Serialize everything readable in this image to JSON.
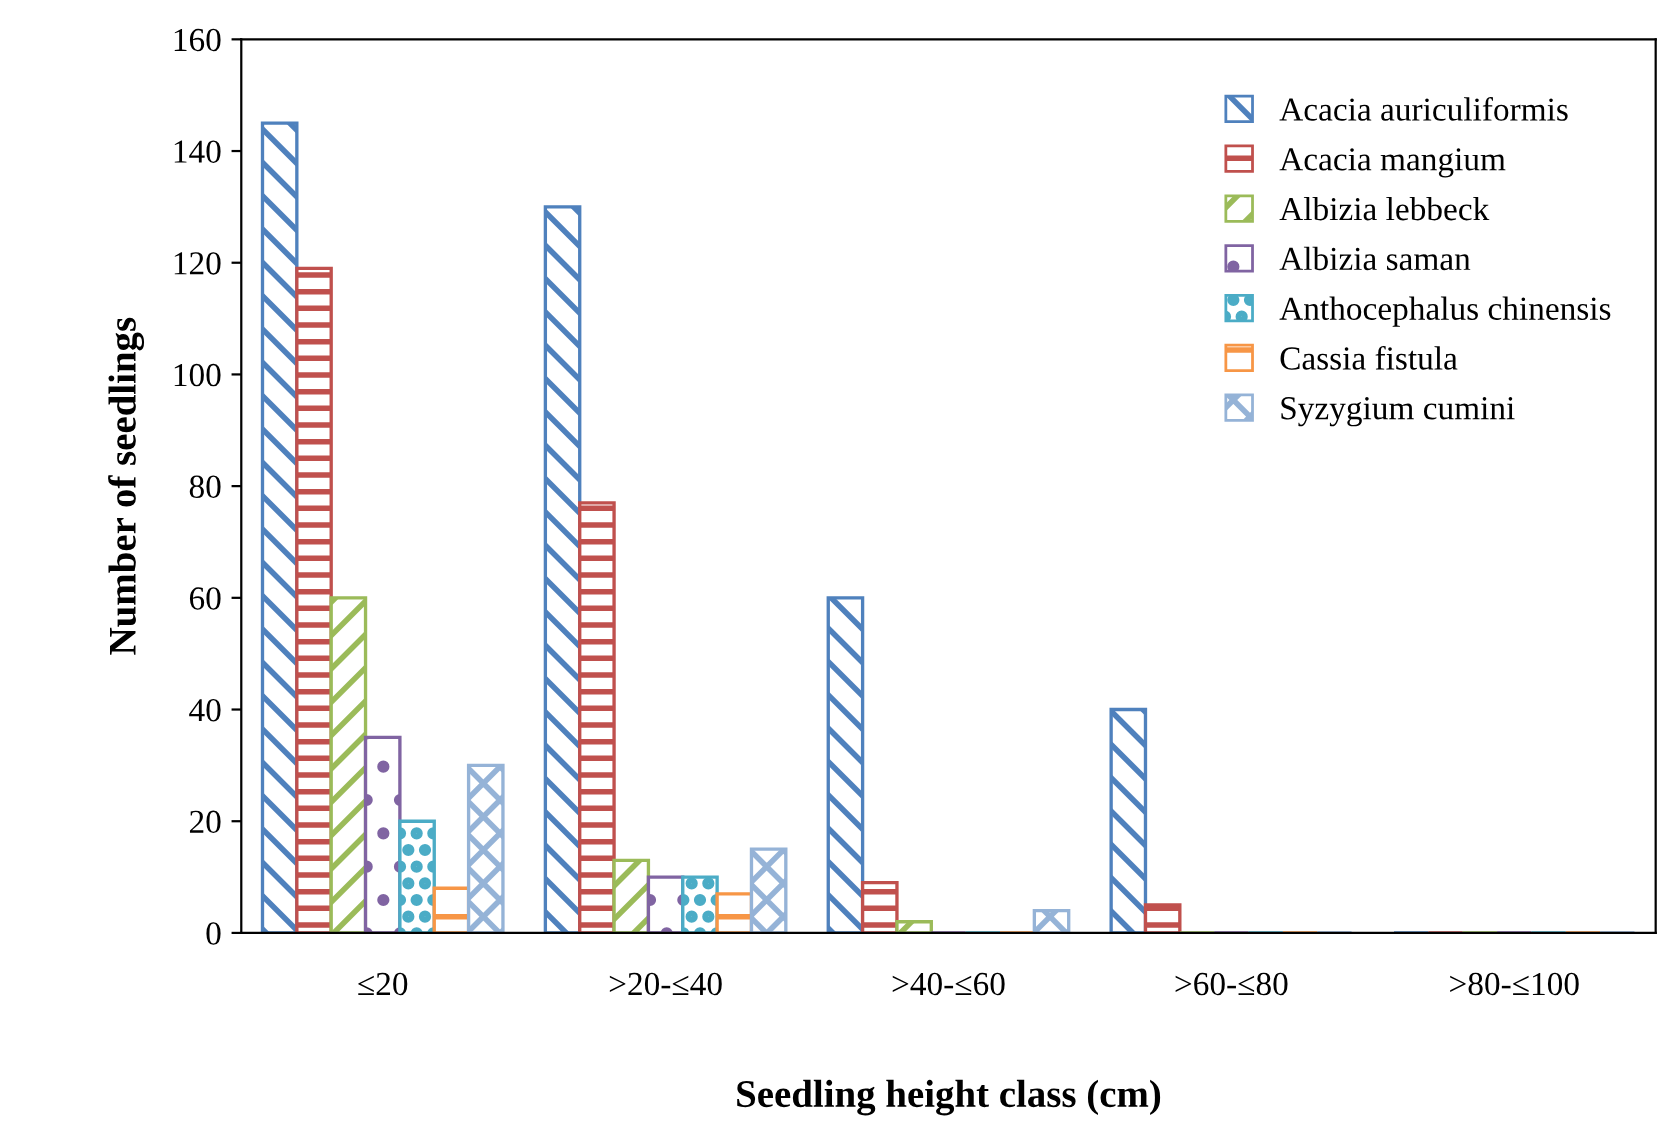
{
  "chart_data": {
    "type": "bar",
    "xlabel": "Seedling height class (cm)",
    "ylabel": "Number of seedlings",
    "categories": [
      "≤20",
      ">20-≤40",
      ">40-≤60",
      ">60-≤80",
      ">80-≤100"
    ],
    "series": [
      {
        "name": "Acacia auriculiformis",
        "color": "#4f81bd",
        "values": [
          145,
          130,
          60,
          40,
          0
        ]
      },
      {
        "name": "Acacia mangium",
        "color": "#c0504d",
        "values": [
          119,
          77,
          9,
          5,
          0
        ]
      },
      {
        "name": "Albizia lebbeck",
        "color": "#9bbb59",
        "values": [
          60,
          13,
          2,
          0,
          0
        ]
      },
      {
        "name": "Albizia saman",
        "color": "#8064a2",
        "values": [
          35,
          10,
          0,
          0,
          0
        ]
      },
      {
        "name": "Anthocephalus chinensis",
        "color": "#4bacc6",
        "values": [
          20,
          10,
          0,
          0,
          0
        ]
      },
      {
        "name": "Cassia fistula",
        "color": "#f79646",
        "values": [
          8,
          7,
          0,
          0,
          0
        ]
      },
      {
        "name": "Syzygium cumini",
        "color": "#95b3d7",
        "values": [
          30,
          15,
          4,
          0,
          0
        ]
      }
    ],
    "ylim": [
      0,
      160
    ],
    "yticks": [
      0,
      20,
      40,
      60,
      80,
      100,
      120,
      140,
      160
    ],
    "grid": false,
    "legend": "top right"
  }
}
